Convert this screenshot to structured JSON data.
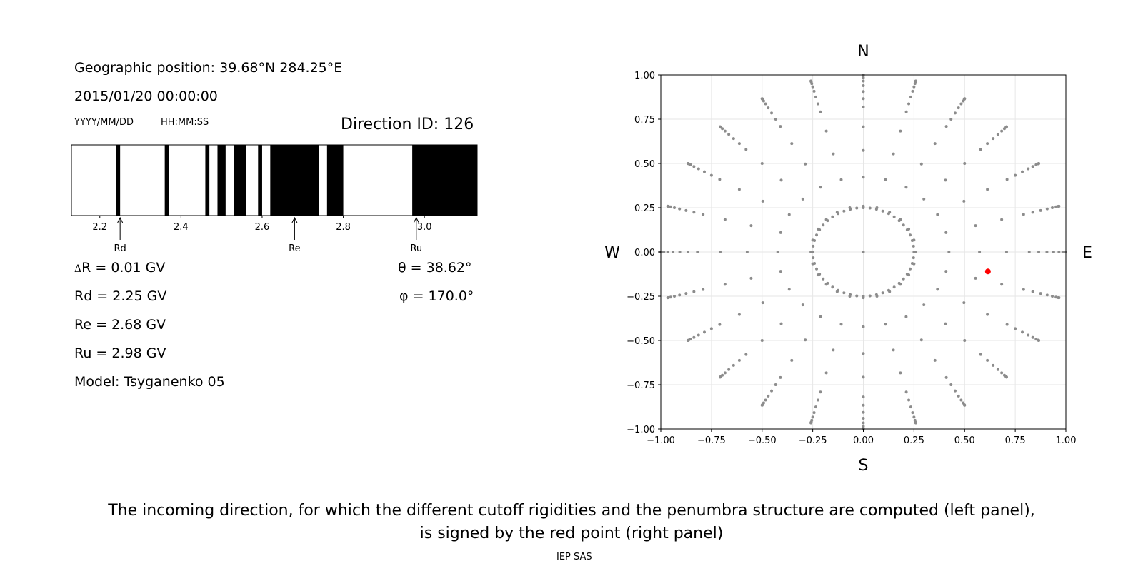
{
  "left_panel": {
    "geo_position": "Geographic position: 39.68°N 284.25°E",
    "datetime": "2015/01/20 00:00:00",
    "date_format": "YYYY/MM/DD",
    "time_format": "HH:MM:SS",
    "direction_id": "Direction ID: 126",
    "stats": {
      "delta_r": "R = 0.01 GV",
      "delta_symbol": "Δ",
      "rd": "Rd = 2.25 GV",
      "re": "Re = 2.68 GV",
      "ru": "Ru = 2.98 GV",
      "model": "Model: Tsyganenko 05",
      "theta": "θ = 38.62°",
      "phi": "φ = 170.0°"
    }
  },
  "chart_data": [
    {
      "type": "bar",
      "name": "penumbra",
      "xlim": [
        2.13,
        3.13
      ],
      "ticks": [
        "2.2",
        "2.4",
        "2.6",
        "2.8",
        "3.0"
      ],
      "tick_values": [
        2.2,
        2.4,
        2.6,
        2.8,
        3.0
      ],
      "forbidden_bands": [
        [
          2.24,
          2.25
        ],
        [
          2.36,
          2.37
        ],
        [
          2.46,
          2.47
        ],
        [
          2.49,
          2.51
        ],
        [
          2.53,
          2.56
        ],
        [
          2.59,
          2.6
        ],
        [
          2.62,
          2.74
        ],
        [
          2.76,
          2.8
        ],
        [
          2.97,
          3.13
        ]
      ],
      "markers": [
        {
          "label": "Rd",
          "value": 2.25
        },
        {
          "label": "Re",
          "value": 2.68
        },
        {
          "label": "Ru",
          "value": 2.98
        }
      ]
    },
    {
      "type": "scatter",
      "name": "directions",
      "xlim": [
        -1.0,
        1.0
      ],
      "ylim": [
        -1.0,
        1.0
      ],
      "xticks": [
        "−1.00",
        "−0.75",
        "−0.50",
        "−0.25",
        "0.00",
        "0.25",
        "0.50",
        "0.75",
        "1.00"
      ],
      "yticks": [
        "1.00",
        "0.75",
        "0.50",
        "0.25",
        "0.00",
        "−0.25",
        "−0.50",
        "−0.75",
        "−1.00"
      ],
      "tick_values": [
        -1.0,
        -0.75,
        -0.5,
        -0.25,
        0.0,
        0.25,
        0.5,
        0.75,
        1.0
      ],
      "grid": true,
      "compass": {
        "north": "N",
        "south": "S",
        "west": "W",
        "east": "E"
      },
      "grid_color": "#8c8c8c",
      "selected_color": "#ff0000",
      "selected_point": {
        "x": 0.615,
        "y": -0.11
      },
      "zenith_angles_deg": [
        0,
        15,
        25,
        35,
        45,
        55,
        60,
        65,
        70,
        75,
        80,
        85,
        88,
        90
      ],
      "azimuth_step_deg": 15
    }
  ],
  "caption": {
    "line1": "The incoming direction, for which the different cutoff rigidities and the penumbra structure are computed (left panel),",
    "line2": "is signed by the red point (right panel)",
    "footer": "IEP SAS"
  }
}
